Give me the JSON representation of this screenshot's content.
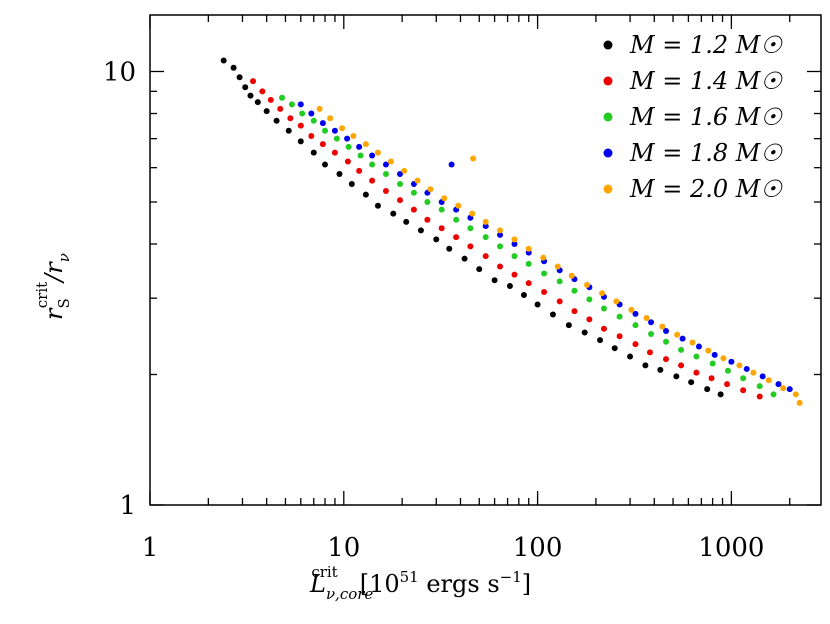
{
  "chart_data": {
    "type": "scatter",
    "title": "",
    "xlabel": "L_{ν,core}^{crit} [10^{51} ergs s^{-1}]",
    "ylabel": "r_S^{crit}/r_ν",
    "x_scale": "log",
    "y_scale": "log",
    "xlim": [
      1,
      2900
    ],
    "ylim": [
      1,
      13.5
    ],
    "x_ticks": [
      {
        "value": 1,
        "label": "1"
      },
      {
        "value": 10,
        "label": "10"
      },
      {
        "value": 100,
        "label": "100"
      },
      {
        "value": 1000,
        "label": "1000"
      }
    ],
    "y_ticks": [
      {
        "value": 1,
        "label": "1"
      },
      {
        "value": 10,
        "label": "10"
      }
    ],
    "grid": false,
    "legend_position": "top-right",
    "series": [
      {
        "name": "M = 1.2 M☉",
        "color": "#000000",
        "x": [
          2.4,
          2.7,
          2.9,
          3.1,
          3.3,
          3.6,
          4.0,
          4.5,
          5.2,
          6.0,
          7.0,
          8.0,
          9.5,
          11,
          13,
          15,
          18,
          21,
          25,
          30,
          35,
          42,
          50,
          60,
          72,
          85,
          100,
          120,
          145,
          175,
          210,
          250,
          300,
          360,
          430,
          520,
          620,
          750,
          880
        ],
        "y": [
          10.6,
          10.2,
          9.7,
          9.2,
          8.8,
          8.5,
          8.1,
          7.7,
          7.3,
          6.9,
          6.5,
          6.1,
          5.8,
          5.5,
          5.2,
          4.9,
          4.7,
          4.5,
          4.3,
          4.1,
          3.9,
          3.7,
          3.5,
          3.3,
          3.2,
          3.05,
          2.9,
          2.75,
          2.6,
          2.5,
          2.4,
          2.3,
          2.2,
          2.1,
          2.05,
          1.98,
          1.92,
          1.85,
          1.8
        ]
      },
      {
        "name": "M = 1.4 M☉",
        "color": "#ee0000",
        "x": [
          3.4,
          3.8,
          4.2,
          4.7,
          5.3,
          6.0,
          6.8,
          7.8,
          9.0,
          10.5,
          12,
          14,
          16.5,
          19.5,
          23,
          27,
          32,
          38,
          45,
          54,
          64,
          76,
          90,
          108,
          130,
          155,
          185,
          220,
          265,
          320,
          380,
          460,
          550,
          660,
          790,
          950,
          1150,
          1400
        ],
        "y": [
          9.5,
          9.0,
          8.6,
          8.2,
          7.8,
          7.5,
          7.1,
          6.8,
          6.5,
          6.2,
          5.9,
          5.6,
          5.3,
          5.05,
          4.8,
          4.55,
          4.35,
          4.15,
          3.95,
          3.75,
          3.55,
          3.4,
          3.25,
          3.1,
          2.95,
          2.8,
          2.68,
          2.55,
          2.45,
          2.35,
          2.25,
          2.17,
          2.1,
          2.02,
          1.96,
          1.9,
          1.84,
          1.78
        ]
      },
      {
        "name": "M = 1.6 M☉",
        "color": "#22cc22",
        "x": [
          4.8,
          5.4,
          6.1,
          7.0,
          8.0,
          9.2,
          10.6,
          12.2,
          14,
          16.5,
          19.5,
          23,
          27,
          32,
          38,
          45,
          54,
          64,
          76,
          90,
          108,
          130,
          155,
          185,
          220,
          265,
          320,
          385,
          460,
          550,
          660,
          800,
          960,
          1150,
          1400,
          1650
        ],
        "y": [
          8.7,
          8.4,
          8.0,
          7.7,
          7.3,
          7.0,
          6.7,
          6.4,
          6.1,
          5.8,
          5.5,
          5.25,
          5.0,
          4.8,
          4.55,
          4.35,
          4.15,
          3.95,
          3.75,
          3.6,
          3.42,
          3.28,
          3.12,
          2.98,
          2.84,
          2.72,
          2.6,
          2.48,
          2.38,
          2.28,
          2.2,
          2.12,
          2.04,
          1.96,
          1.88,
          1.8
        ]
      },
      {
        "name": "M = 1.8 M☉",
        "color": "#0000ee",
        "x": [
          6.0,
          6.8,
          7.8,
          9.0,
          10.4,
          12,
          14,
          16.5,
          19.5,
          23,
          27,
          32,
          36,
          38,
          45,
          54,
          64,
          76,
          90,
          108,
          130,
          155,
          185,
          220,
          265,
          320,
          385,
          460,
          560,
          680,
          820,
          1000,
          1200,
          1450,
          1750,
          2000
        ],
        "y": [
          8.4,
          8.0,
          7.6,
          7.3,
          7.0,
          6.7,
          6.4,
          6.1,
          5.8,
          5.5,
          5.25,
          5.0,
          6.1,
          4.8,
          4.6,
          4.4,
          4.2,
          4.0,
          3.82,
          3.65,
          3.48,
          3.32,
          3.18,
          3.02,
          2.9,
          2.76,
          2.64,
          2.52,
          2.42,
          2.32,
          2.22,
          2.14,
          2.06,
          1.98,
          1.9,
          1.85
        ]
      },
      {
        "name": "M = 2.0 M☉",
        "color": "#ffa500",
        "x": [
          7.5,
          8.5,
          9.8,
          11.2,
          13,
          15,
          17.5,
          20.5,
          24,
          28,
          33,
          39,
          46,
          46.5,
          54,
          64,
          76,
          90,
          107,
          127,
          150,
          180,
          215,
          255,
          305,
          365,
          440,
          525,
          630,
          760,
          910,
          1100,
          1300,
          1560,
          1850,
          2150,
          2250
        ],
        "y": [
          8.2,
          7.8,
          7.4,
          7.1,
          6.8,
          6.5,
          6.2,
          5.9,
          5.6,
          5.35,
          5.1,
          4.9,
          4.7,
          6.3,
          4.5,
          4.3,
          4.1,
          3.9,
          3.72,
          3.55,
          3.38,
          3.22,
          3.08,
          2.95,
          2.82,
          2.7,
          2.58,
          2.47,
          2.37,
          2.27,
          2.18,
          2.1,
          2.02,
          1.94,
          1.86,
          1.8,
          1.72
        ]
      }
    ]
  },
  "legend": {
    "labels": [
      "M = 1.2 M☉",
      "M = 1.4 M☉",
      "M = 1.6 M☉",
      "M = 1.8 M☉",
      "M = 2.0 M☉"
    ]
  },
  "axes": {
    "x_title_main": "L",
    "x_title_sub": "ν,core",
    "x_title_sup": "crit",
    "x_title_units": "[10",
    "x_title_units_exp": "51",
    "x_title_units_tail": " ergs s",
    "x_title_units_exp2": "−1",
    "x_title_units_close": "]",
    "y_title_main": "r",
    "y_title_sub": "S",
    "y_title_sup": "crit",
    "y_title_slash": "/r",
    "y_title_sub2": "ν"
  }
}
